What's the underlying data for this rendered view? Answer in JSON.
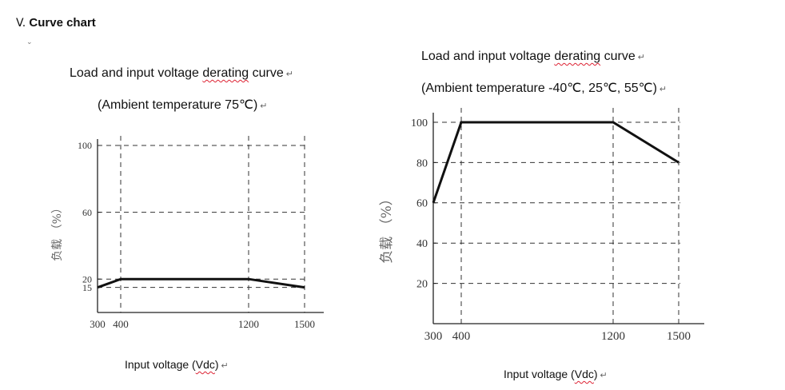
{
  "section": {
    "number": "V.",
    "title": "Curve chart",
    "mark": "⌄"
  },
  "paragraph_mark": "↵",
  "charts": [
    {
      "title_parts": [
        "Load and input voltage ",
        "derating",
        " curve"
      ],
      "subtitle": "(Ambient temperature 75℃)",
      "xlabel_parts": [
        "Input voltage (",
        "Vdc",
        ")"
      ],
      "ylabel": "负载 （%）"
    },
    {
      "title_parts": [
        "Load and input voltage ",
        "derating",
        " curve"
      ],
      "subtitle": "(Ambient temperature -40℃, 25℃, 55℃)",
      "xlabel_parts": [
        "Input voltage (",
        "Vdc",
        ")"
      ],
      "ylabel": "负载 （%）"
    }
  ],
  "chart_data": [
    {
      "type": "line",
      "title": "Load and input voltage derating curve (Ambient temperature 75℃)",
      "xlabel": "Input voltage (Vdc)",
      "ylabel": "负载 （%）",
      "x": [
        300,
        400,
        1200,
        1500
      ],
      "series": [
        {
          "values": [
            15,
            20,
            20,
            15
          ]
        }
      ],
      "x_ticks": [
        300,
        400,
        1200,
        1500
      ],
      "y_ticks": [
        15,
        20,
        60,
        100
      ],
      "xlim": [
        300,
        1500
      ],
      "ylim": [
        0,
        100
      ],
      "grid": "dashed",
      "line_color": "#111111"
    },
    {
      "type": "line",
      "title": "Load and input voltage derating curve (Ambient temperature -40℃, 25℃, 55℃)",
      "xlabel": "Input voltage (Vdc)",
      "ylabel": "负载 （%）",
      "x": [
        300,
        400,
        1200,
        1500
      ],
      "series": [
        {
          "values": [
            60,
            100,
            100,
            80
          ]
        }
      ],
      "x_ticks": [
        300,
        400,
        1200,
        1500
      ],
      "y_ticks": [
        20,
        40,
        60,
        80,
        100
      ],
      "xlim": [
        300,
        1500
      ],
      "ylim": [
        0,
        100
      ],
      "grid": "dashed",
      "line_color": "#111111"
    }
  ]
}
